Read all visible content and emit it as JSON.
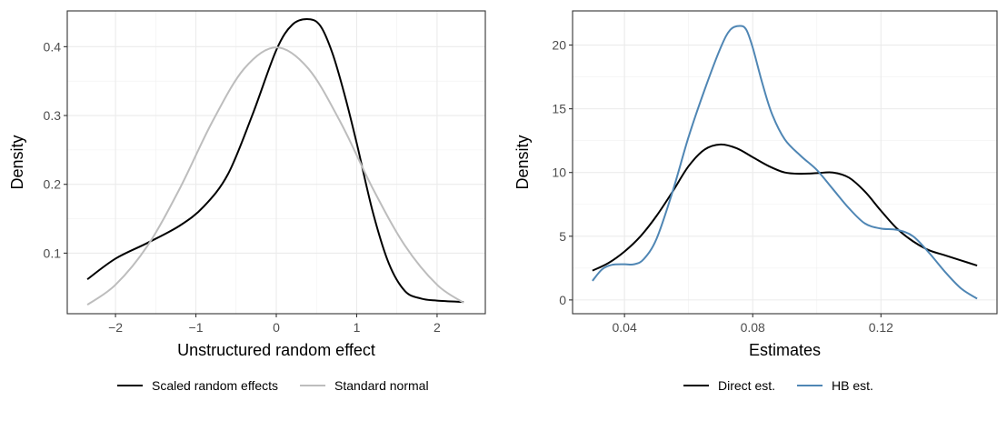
{
  "chart_data": [
    {
      "type": "line",
      "xlabel": "Unstructured random effect",
      "ylabel": "Density",
      "xlim": [
        -2.6,
        2.6
      ],
      "ylim": [
        0.012,
        0.452
      ],
      "x_ticks": [
        -2,
        -1,
        0,
        1,
        2
      ],
      "x_tick_labels": [
        "−2",
        "−1",
        "0",
        "1",
        "2"
      ],
      "y_ticks": [
        0.1,
        0.2,
        0.3,
        0.4
      ],
      "y_tick_labels": [
        "0.1",
        "0.2",
        "0.3",
        "0.4"
      ],
      "grid": true,
      "legend_position": "bottom",
      "series": [
        {
          "name": "Scaled random effects",
          "color": "#000000",
          "x": [
            -2.35,
            -2.0,
            -1.6,
            -1.2,
            -0.9,
            -0.6,
            -0.3,
            0.0,
            0.2,
            0.4,
            0.55,
            0.7,
            0.85,
            1.0,
            1.2,
            1.4,
            1.6,
            1.8,
            2.0,
            2.33
          ],
          "y": [
            0.062,
            0.092,
            0.115,
            0.14,
            0.168,
            0.215,
            0.3,
            0.395,
            0.432,
            0.44,
            0.43,
            0.39,
            0.33,
            0.26,
            0.16,
            0.085,
            0.045,
            0.034,
            0.031,
            0.029
          ]
        },
        {
          "name": "Standard normal",
          "color": "#bdbdbd",
          "x": [
            -2.35,
            -2.0,
            -1.6,
            -1.2,
            -0.8,
            -0.4,
            0.0,
            0.4,
            0.8,
            1.2,
            1.6,
            2.0,
            2.33
          ],
          "y": [
            0.025,
            0.054,
            0.111,
            0.194,
            0.29,
            0.368,
            0.399,
            0.368,
            0.29,
            0.194,
            0.111,
            0.054,
            0.028
          ]
        }
      ]
    },
    {
      "type": "line",
      "xlabel": "Estimates",
      "ylabel": "Density",
      "xlim": [
        0.0238,
        0.1562
      ],
      "ylim": [
        -1.08,
        22.68
      ],
      "x_ticks": [
        0.04,
        0.08,
        0.12
      ],
      "x_tick_labels": [
        "0.04",
        "0.08",
        "0.12"
      ],
      "y_ticks": [
        0,
        5,
        10,
        15,
        20
      ],
      "y_tick_labels": [
        "0",
        "5",
        "10",
        "15",
        "20"
      ],
      "grid": true,
      "legend_position": "bottom",
      "series": [
        {
          "name": "Direct est.",
          "color": "#000000",
          "x": [
            0.03,
            0.035,
            0.04,
            0.045,
            0.05,
            0.055,
            0.06,
            0.065,
            0.07,
            0.075,
            0.08,
            0.085,
            0.09,
            0.095,
            0.1,
            0.105,
            0.11,
            0.115,
            0.12,
            0.125,
            0.13,
            0.135,
            0.14,
            0.145,
            0.15
          ],
          "y": [
            2.3,
            2.9,
            3.8,
            5.0,
            6.6,
            8.5,
            10.5,
            11.8,
            12.2,
            11.9,
            11.2,
            10.5,
            10.0,
            9.9,
            9.95,
            10.0,
            9.6,
            8.5,
            7.0,
            5.6,
            4.6,
            3.9,
            3.5,
            3.1,
            2.7
          ]
        },
        {
          "name": "HB est.",
          "color": "#4f86b4",
          "x": [
            0.03,
            0.033,
            0.036,
            0.04,
            0.043,
            0.046,
            0.05,
            0.055,
            0.06,
            0.065,
            0.07,
            0.073,
            0.076,
            0.078,
            0.08,
            0.083,
            0.086,
            0.09,
            0.095,
            0.1,
            0.105,
            0.11,
            0.115,
            0.12,
            0.125,
            0.13,
            0.135,
            0.14,
            0.145,
            0.15
          ],
          "y": [
            1.5,
            2.4,
            2.75,
            2.8,
            2.8,
            3.2,
            4.8,
            8.5,
            12.8,
            16.5,
            19.8,
            21.2,
            21.5,
            21.2,
            19.8,
            17.0,
            14.6,
            12.6,
            11.3,
            10.2,
            8.7,
            7.2,
            6.0,
            5.6,
            5.5,
            5.0,
            3.7,
            2.2,
            0.9,
            0.1
          ]
        }
      ]
    }
  ]
}
